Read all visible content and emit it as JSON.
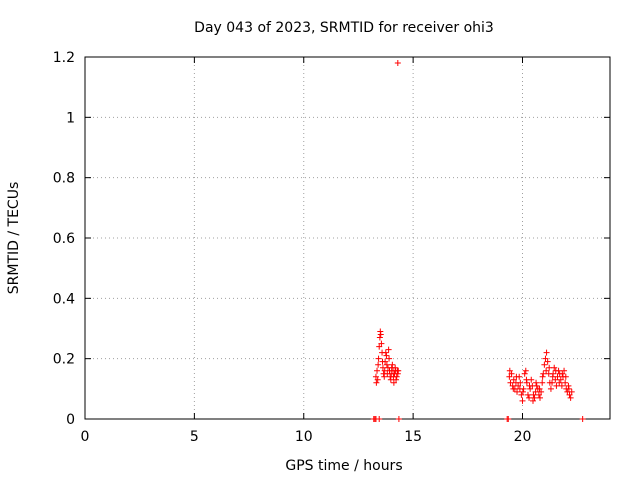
{
  "chart_data": {
    "type": "scatter",
    "title": "Day 043 of 2023, SRMTID for receiver ohi3",
    "xlabel": "GPS time / hours",
    "ylabel": "SRMTID / TECUs",
    "xlim": [
      0,
      24
    ],
    "ylim": [
      0,
      1.2
    ],
    "xticks": [
      0,
      5,
      10,
      15,
      20
    ],
    "yticks": [
      0,
      0.2,
      0.4,
      0.6,
      0.8,
      1,
      1.2
    ],
    "xtick_labels": [
      "0",
      "5",
      "10",
      "15",
      "20"
    ],
    "ytick_labels": [
      "0",
      "0.2",
      "0.4",
      "0.6",
      "0.8",
      "1",
      "1.2"
    ],
    "grid": true,
    "marker": "+",
    "series": [
      {
        "name": "SRMTID",
        "color": "#ff0000",
        "points": [
          [
            13.2,
            0.0
          ],
          [
            13.25,
            0.0
          ],
          [
            13.3,
            0.0
          ],
          [
            13.45,
            0.0
          ],
          [
            14.35,
            0.0
          ],
          [
            19.3,
            0.0
          ],
          [
            19.35,
            0.0
          ],
          [
            22.75,
            0.0
          ],
          [
            14.3,
            1.18
          ],
          [
            13.3,
            0.14
          ],
          [
            13.32,
            0.12
          ],
          [
            13.35,
            0.16
          ],
          [
            13.38,
            0.13
          ],
          [
            13.4,
            0.18
          ],
          [
            13.42,
            0.2
          ],
          [
            13.45,
            0.24
          ],
          [
            13.48,
            0.27
          ],
          [
            13.5,
            0.29
          ],
          [
            13.52,
            0.28
          ],
          [
            13.55,
            0.25
          ],
          [
            13.58,
            0.22
          ],
          [
            13.6,
            0.19
          ],
          [
            13.62,
            0.17
          ],
          [
            13.65,
            0.15
          ],
          [
            13.68,
            0.14
          ],
          [
            13.7,
            0.16
          ],
          [
            13.72,
            0.19
          ],
          [
            13.75,
            0.22
          ],
          [
            13.78,
            0.21
          ],
          [
            13.8,
            0.18
          ],
          [
            13.82,
            0.15
          ],
          [
            13.85,
            0.17
          ],
          [
            13.88,
            0.23
          ],
          [
            13.9,
            0.2
          ],
          [
            13.92,
            0.16
          ],
          [
            13.95,
            0.14
          ],
          [
            13.98,
            0.13
          ],
          [
            14.0,
            0.15
          ],
          [
            14.02,
            0.17
          ],
          [
            14.05,
            0.18
          ],
          [
            14.08,
            0.16
          ],
          [
            14.1,
            0.14
          ],
          [
            14.12,
            0.12
          ],
          [
            14.15,
            0.15
          ],
          [
            14.18,
            0.17
          ],
          [
            14.2,
            0.16
          ],
          [
            14.22,
            0.13
          ],
          [
            14.25,
            0.14
          ],
          [
            14.28,
            0.16
          ],
          [
            14.3,
            0.15
          ],
          [
            14.32,
            0.16
          ],
          [
            19.4,
            0.14
          ],
          [
            19.45,
            0.12
          ],
          [
            19.5,
            0.15
          ],
          [
            19.55,
            0.11
          ],
          [
            19.6,
            0.13
          ],
          [
            19.65,
            0.1
          ],
          [
            19.7,
            0.12
          ],
          [
            19.75,
            0.09
          ],
          [
            19.8,
            0.11
          ],
          [
            19.85,
            0.14
          ],
          [
            19.9,
            0.12
          ],
          [
            19.95,
            0.08
          ],
          [
            20.0,
            0.06
          ],
          [
            20.05,
            0.1
          ],
          [
            20.1,
            0.15
          ],
          [
            20.15,
            0.16
          ],
          [
            20.2,
            0.12
          ],
          [
            20.25,
            0.08
          ],
          [
            20.3,
            0.07
          ],
          [
            20.35,
            0.1
          ],
          [
            20.4,
            0.13
          ],
          [
            20.45,
            0.11
          ],
          [
            20.5,
            0.08
          ],
          [
            20.55,
            0.07
          ],
          [
            20.6,
            0.09
          ],
          [
            20.65,
            0.11
          ],
          [
            20.7,
            0.1
          ],
          [
            20.75,
            0.08
          ],
          [
            20.8,
            0.07
          ],
          [
            20.85,
            0.09
          ],
          [
            20.9,
            0.12
          ],
          [
            20.95,
            0.15
          ],
          [
            21.0,
            0.18
          ],
          [
            21.05,
            0.2
          ],
          [
            21.1,
            0.22
          ],
          [
            21.15,
            0.19
          ],
          [
            21.2,
            0.15
          ],
          [
            21.25,
            0.12
          ],
          [
            21.3,
            0.1
          ],
          [
            21.35,
            0.12
          ],
          [
            21.4,
            0.15
          ],
          [
            21.45,
            0.17
          ],
          [
            21.5,
            0.13
          ],
          [
            21.55,
            0.11
          ],
          [
            21.6,
            0.14
          ],
          [
            21.65,
            0.16
          ],
          [
            21.7,
            0.15
          ],
          [
            21.75,
            0.13
          ],
          [
            21.8,
            0.11
          ],
          [
            21.85,
            0.14
          ],
          [
            21.9,
            0.16
          ],
          [
            21.95,
            0.12
          ],
          [
            22.0,
            0.1
          ],
          [
            22.05,
            0.09
          ],
          [
            22.1,
            0.11
          ],
          [
            22.15,
            0.08
          ],
          [
            22.2,
            0.07
          ],
          [
            22.25,
            0.09
          ],
          [
            19.42,
            0.16
          ],
          [
            19.58,
            0.1
          ],
          [
            19.72,
            0.14
          ],
          [
            19.88,
            0.1
          ],
          [
            20.02,
            0.09
          ],
          [
            20.18,
            0.13
          ],
          [
            20.32,
            0.11
          ],
          [
            20.48,
            0.06
          ],
          [
            20.62,
            0.12
          ],
          [
            20.78,
            0.1
          ],
          [
            20.92,
            0.14
          ],
          [
            21.08,
            0.16
          ],
          [
            21.22,
            0.17
          ],
          [
            21.38,
            0.14
          ],
          [
            21.52,
            0.16
          ],
          [
            21.68,
            0.12
          ],
          [
            21.82,
            0.15
          ],
          [
            21.98,
            0.14
          ],
          [
            22.12,
            0.1
          ]
        ]
      }
    ]
  }
}
